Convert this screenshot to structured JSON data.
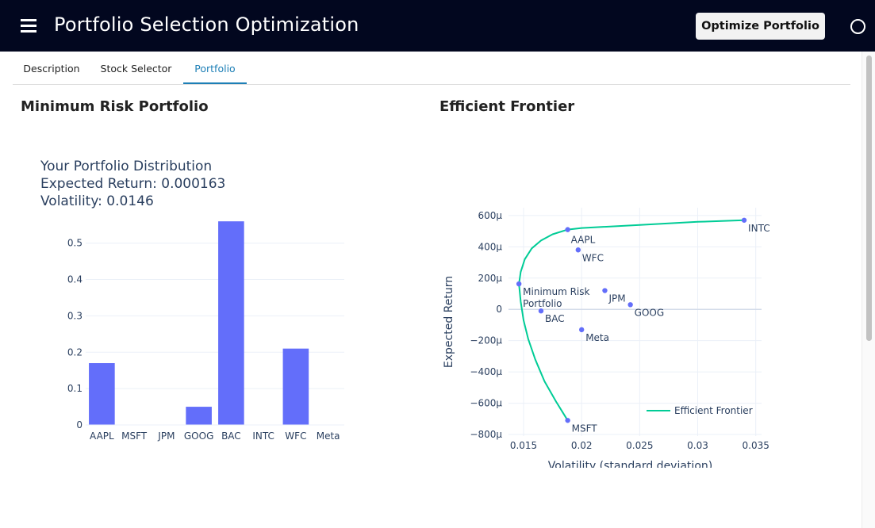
{
  "header": {
    "title": "Portfolio Selection Optimization",
    "optimize_label": "Optimize Portfolio"
  },
  "tabs": [
    {
      "label": "Description",
      "active": false
    },
    {
      "label": "Stock Selector",
      "active": false
    },
    {
      "label": "Portfolio",
      "active": true
    }
  ],
  "left_panel": {
    "title": "Minimum Risk Portfolio",
    "distribution_title": "Your Portfolio Distribution",
    "expected_return_text": "Expected Return: 0.000163",
    "volatility_text": "Volatility: 0.0146"
  },
  "right_panel": {
    "title": "Efficient Frontier"
  },
  "colors": {
    "header_bg": "#02071f",
    "bar": "#636efa",
    "frontier": "#00cc96",
    "point": "#636efa",
    "active_tab": "#1d7fb6"
  },
  "chart_data": [
    {
      "type": "bar",
      "categories": [
        "AAPL",
        "MSFT",
        "JPM",
        "GOOG",
        "BAC",
        "INTC",
        "WFC",
        "Meta"
      ],
      "values": [
        0.17,
        0.0,
        0.0,
        0.05,
        0.56,
        0.0,
        0.21,
        0.0
      ],
      "ylim": [
        0,
        0.58
      ],
      "yticks": [
        0,
        0.1,
        0.2,
        0.3,
        0.4,
        0.5
      ],
      "ytick_labels": [
        "0",
        "0.1",
        "0.2",
        "0.3",
        "0.4",
        "0.5"
      ],
      "grid": true
    },
    {
      "type": "scatter",
      "xlabel": "Volatility (standard deviation)",
      "ylabel": "Expected Return",
      "xlim": [
        0.0137,
        0.0355
      ],
      "ylim": [
        -0.00081,
        0.00065
      ],
      "xticks": [
        0.015,
        0.02,
        0.025,
        0.03,
        0.035
      ],
      "xtick_labels": [
        "0.015",
        "0.02",
        "0.025",
        "0.03",
        "0.035"
      ],
      "yticks": [
        -0.0008,
        -0.0006,
        -0.0004,
        -0.0002,
        0,
        0.0002,
        0.0004,
        0.0006
      ],
      "ytick_labels": [
        "−800μ",
        "−600μ",
        "−400μ",
        "−200μ",
        "0",
        "200μ",
        "400μ",
        "600μ"
      ],
      "legend": {
        "position": "bottom-right",
        "label": "Efficient Frontier"
      },
      "grid": true,
      "frontier": {
        "name": "Efficient Frontier",
        "x": [
          0.0188,
          0.0178,
          0.0168,
          0.016,
          0.0154,
          0.015,
          0.01475,
          0.0146,
          0.01475,
          0.0151,
          0.0157,
          0.0165,
          0.0175,
          0.0188,
          0.02,
          0.025,
          0.03,
          0.034
        ],
        "y": [
          -0.00071,
          -0.00059,
          -0.00046,
          -0.00032,
          -0.00019,
          -7e-05,
          5e-05,
          0.000163,
          0.00024,
          0.00032,
          0.00039,
          0.00044,
          0.00048,
          0.00051,
          0.00052,
          0.00054,
          0.00056,
          0.00057
        ]
      },
      "points": [
        {
          "name": "AAPL",
          "x": 0.0188,
          "y": 0.00051,
          "label": "AAPL",
          "label_pos": "above"
        },
        {
          "name": "WFC",
          "x": 0.0197,
          "y": 0.00038,
          "label": "WFC",
          "label_pos": "below"
        },
        {
          "name": "INTC",
          "x": 0.034,
          "y": 0.00057,
          "label": "INTC",
          "label_pos": "below"
        },
        {
          "name": "Minimum Risk Portfolio",
          "x": 0.0146,
          "y": 0.000163,
          "label": "Minimum Risk Portfolio",
          "label_pos": "right"
        },
        {
          "name": "JPM",
          "x": 0.022,
          "y": 0.00012,
          "label": "JPM",
          "label_pos": "below"
        },
        {
          "name": "GOOG",
          "x": 0.0242,
          "y": 3e-05,
          "label": "GOOG",
          "label_pos": "below"
        },
        {
          "name": "BAC",
          "x": 0.0165,
          "y": -1e-05,
          "label": "BAC",
          "label_pos": "below"
        },
        {
          "name": "Meta",
          "x": 0.02,
          "y": -0.00013,
          "label": "Meta",
          "label_pos": "below"
        },
        {
          "name": "MSFT",
          "x": 0.0188,
          "y": -0.00071,
          "label": "MSFT",
          "label_pos": "below"
        }
      ]
    }
  ]
}
